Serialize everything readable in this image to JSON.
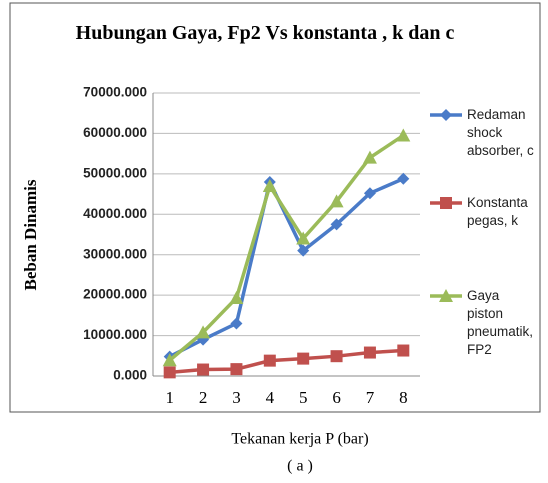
{
  "chart_data": {
    "type": "line",
    "title": "Hubungan Gaya, Fp2 Vs konstanta , k dan c",
    "y_label": "Beban Dinamis",
    "x_label": "Tekanan kerja P (bar)",
    "caption": "( a )",
    "categories": [
      "1",
      "2",
      "3",
      "4",
      "5",
      "6",
      "7",
      "8"
    ],
    "series": [
      {
        "name": "Redaman shock absorber, c",
        "color": "#4a7bc8",
        "marker": "diamond",
        "values": [
          4800,
          9000,
          13000,
          48000,
          31000,
          37500,
          45200,
          48800
        ]
      },
      {
        "name": "Konstanta pegas, k",
        "color": "#c0504d",
        "marker": "square",
        "values": [
          900,
          1600,
          1700,
          3800,
          4300,
          4900,
          5800,
          6300
        ]
      },
      {
        "name": "Gaya piston pneumatik, FP2",
        "color": "#9bbb59",
        "marker": "triangle",
        "values": [
          3900,
          10800,
          19300,
          47000,
          34000,
          43200,
          54000,
          59500
        ]
      }
    ],
    "ylim": [
      0,
      70000
    ],
    "yticks": [
      {
        "value": 0,
        "label": "0.000"
      },
      {
        "value": 10000,
        "label": "10000.000"
      },
      {
        "value": 20000,
        "label": "20000.000"
      },
      {
        "value": 30000,
        "label": "30000.000"
      },
      {
        "value": 40000,
        "label": "40000.000"
      },
      {
        "value": 50000,
        "label": "50000.000"
      },
      {
        "value": 60000,
        "label": "60000.000"
      },
      {
        "value": 70000,
        "label": "70000.000"
      }
    ],
    "grid": true,
    "legend": "right"
  }
}
